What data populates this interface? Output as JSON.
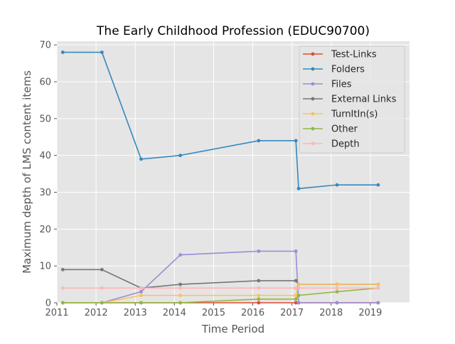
{
  "chart_data": {
    "type": "line",
    "title": "The Early Childhood Profession (EDUC90700)",
    "xlabel": "Time Period",
    "ylabel": "Maximum depth of LMS content items",
    "xlim": [
      2011,
      2020
    ],
    "ylim": [
      0,
      71
    ],
    "xticks": [
      "2011",
      "2012",
      "2013",
      "2014",
      "2015",
      "2016",
      "2017",
      "2018",
      "2019"
    ],
    "yticks": [
      "0",
      "10",
      "20",
      "30",
      "40",
      "50",
      "60",
      "70"
    ],
    "grid": true,
    "legend_position": "top-right",
    "x": [
      2011.15,
      2012.15,
      2013.15,
      2014.15,
      2016.15,
      2017.1,
      2017.17,
      2018.15,
      2019.2
    ],
    "series": [
      {
        "name": "Test-Links",
        "color": "#e24a33",
        "values": [
          0,
          0,
          0,
          0,
          0,
          0,
          0,
          0,
          0
        ]
      },
      {
        "name": "Folders",
        "color": "#348abd",
        "values": [
          68,
          68,
          39,
          40,
          44,
          44,
          31,
          32,
          32
        ]
      },
      {
        "name": "Files",
        "color": "#988ed5",
        "values": [
          0,
          0,
          3,
          13,
          14,
          14,
          0,
          0,
          0
        ]
      },
      {
        "name": "External Links",
        "color": "#777777",
        "values": [
          9,
          9,
          4,
          5,
          6,
          6,
          5,
          5,
          5
        ]
      },
      {
        "name": "TurnItIn(s)",
        "color": "#fbc15e",
        "values": [
          0,
          0,
          2,
          2,
          2,
          2,
          5,
          5,
          5
        ]
      },
      {
        "name": "Other",
        "color": "#8eba42",
        "values": [
          0,
          0,
          0,
          0,
          1,
          1,
          2,
          3,
          4
        ]
      },
      {
        "name": "Depth",
        "color": "#ffb5b8",
        "values": [
          4,
          4,
          4,
          4,
          4,
          4,
          4,
          4,
          4
        ]
      }
    ]
  }
}
